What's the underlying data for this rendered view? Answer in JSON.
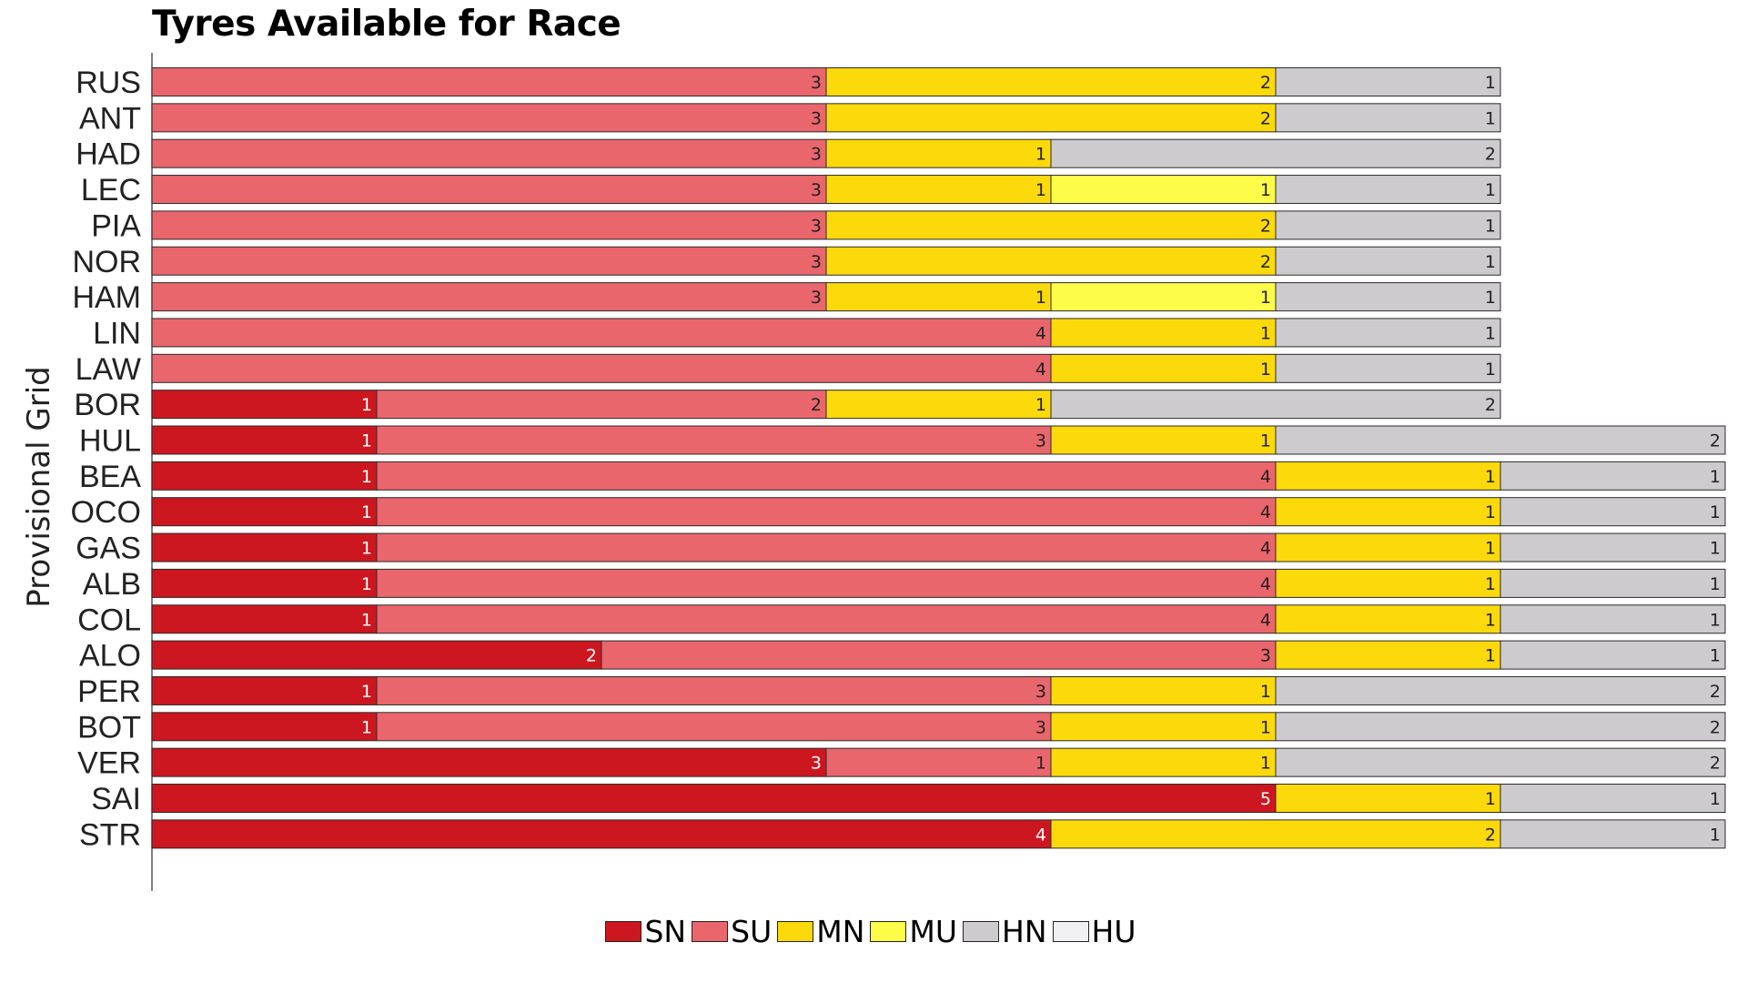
{
  "chart_data": {
    "type": "bar",
    "orientation": "horizontal",
    "stacked": true,
    "title": "Tyres Available for Race",
    "ylabel": "Provisional Grid",
    "xlabel": "",
    "categories": [
      "RUS",
      "ANT",
      "HAD",
      "LEC",
      "PIA",
      "NOR",
      "HAM",
      "LIN",
      "LAW",
      "BOR",
      "HUL",
      "BEA",
      "OCO",
      "GAS",
      "ALB",
      "COL",
      "ALO",
      "PER",
      "BOT",
      "VER",
      "SAI",
      "STR"
    ],
    "series": [
      {
        "name": "SN",
        "color": "#cc1720",
        "values": [
          0,
          0,
          0,
          0,
          0,
          0,
          0,
          0,
          0,
          1,
          1,
          1,
          1,
          1,
          1,
          1,
          2,
          1,
          1,
          3,
          5,
          4
        ]
      },
      {
        "name": "SU",
        "color": "#e9666c",
        "values": [
          3,
          3,
          3,
          3,
          3,
          3,
          3,
          4,
          4,
          2,
          3,
          4,
          4,
          4,
          4,
          4,
          3,
          3,
          3,
          1,
          0,
          0
        ]
      },
      {
        "name": "MN",
        "color": "#fbd90b",
        "values": [
          2,
          2,
          1,
          1,
          2,
          2,
          1,
          1,
          1,
          1,
          1,
          1,
          1,
          1,
          1,
          1,
          1,
          1,
          1,
          1,
          1,
          2
        ]
      },
      {
        "name": "MU",
        "color": "#fcfc49",
        "values": [
          0,
          0,
          0,
          1,
          0,
          0,
          1,
          0,
          0,
          0,
          0,
          0,
          0,
          0,
          0,
          0,
          0,
          0,
          0,
          0,
          0,
          0
        ]
      },
      {
        "name": "HN",
        "color": "#cdcbce",
        "values": [
          1,
          1,
          2,
          1,
          1,
          1,
          1,
          1,
          1,
          2,
          2,
          1,
          1,
          1,
          1,
          1,
          1,
          2,
          2,
          2,
          1,
          1
        ]
      },
      {
        "name": "HU",
        "color": "#f0eff1",
        "values": [
          0,
          0,
          0,
          0,
          0,
          0,
          0,
          0,
          0,
          0,
          0,
          0,
          0,
          0,
          0,
          0,
          0,
          0,
          0,
          0,
          0,
          0
        ]
      }
    ],
    "xlim": [
      0,
      7
    ],
    "grid": false,
    "legend_position": "bottom-center"
  }
}
